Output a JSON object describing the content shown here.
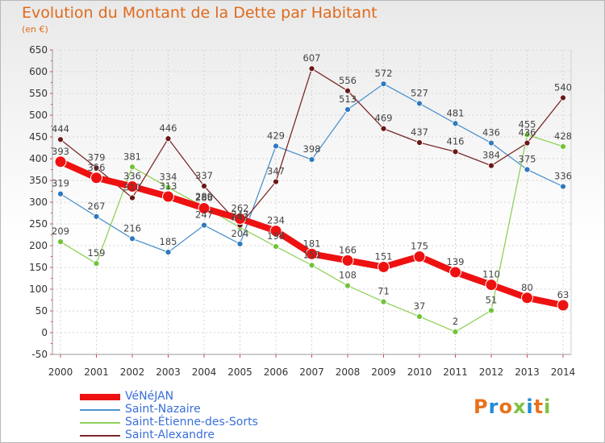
{
  "title": "Evolution du Montant de la Dette par Habitant",
  "subtitle": "(en €)",
  "logo": {
    "text": "Proxiti",
    "colors": [
      "#e8721c",
      "#1f8bd6",
      "#e8721c",
      "#7cc242",
      "#1f8bd6",
      "#e8721c",
      "#7cc242"
    ]
  },
  "chart_data": {
    "type": "line",
    "x": [
      2000,
      2001,
      2002,
      2003,
      2004,
      2005,
      2006,
      2007,
      2008,
      2009,
      2010,
      2011,
      2012,
      2013,
      2014
    ],
    "ylim": [
      -50,
      650
    ],
    "yticks": [
      -50,
      0,
      50,
      100,
      150,
      200,
      250,
      300,
      350,
      400,
      450,
      500,
      550,
      600,
      650
    ],
    "grid": true,
    "legend": "bottom-left",
    "series": [
      {
        "name": "Saint-Nazaire",
        "color": "#4f93cf",
        "dot": "#2f79bd",
        "width": 1.3,
        "radius": 3.5,
        "values": [
          319,
          267,
          216,
          185,
          247,
          204,
          429,
          398,
          513,
          572,
          527,
          481,
          436,
          375,
          336
        ],
        "labels": [
          319,
          267,
          216,
          185,
          247,
          204,
          429,
          398,
          513,
          572,
          527,
          481,
          436,
          375,
          336
        ]
      },
      {
        "name": "Saint-Étienne-des-Sorts",
        "color": "#8fd15a",
        "dot": "#72c23a",
        "width": 1.3,
        "radius": 3.5,
        "values": [
          209,
          159,
          381,
          334,
          289,
          242,
          198,
          155,
          108,
          71,
          37,
          2,
          51,
          455,
          428
        ],
        "labels": [
          209,
          159,
          381,
          334,
          289,
          242,
          198,
          155,
          108,
          71,
          37,
          2,
          51,
          455,
          428
        ]
      },
      {
        "name": "Saint-Alexandre",
        "color": "#7a2a2a",
        "dot": "#6a1818",
        "width": 1.3,
        "radius": 3.5,
        "values": [
          444,
          379,
          310,
          446,
          337,
          247,
          347,
          607,
          556,
          469,
          437,
          416,
          384,
          436,
          540
        ],
        "labels": [
          444,
          379,
          310,
          446,
          337,
          247,
          347,
          607,
          556,
          469,
          437,
          416,
          384,
          436,
          540
        ]
      },
      {
        "name": "VéNéJAN",
        "color": "#ee1111",
        "dot": "#ee1111",
        "width": 8,
        "radius": 7,
        "values": [
          393,
          356,
          336,
          313,
          286,
          262,
          234,
          181,
          166,
          151,
          175,
          139,
          110,
          80,
          63
        ],
        "labels": [
          393,
          356,
          336,
          313,
          286,
          262,
          234,
          181,
          166,
          151,
          175,
          139,
          110,
          80,
          63
        ]
      }
    ],
    "legend_entries": [
      {
        "name": "VéNéJAN",
        "color": "#ee1111",
        "width": 8
      },
      {
        "name": "Saint-Nazaire",
        "color": "#4f93cf",
        "width": 1.5
      },
      {
        "name": "Saint-Étienne-des-Sorts",
        "color": "#8fd15a",
        "width": 1.5
      },
      {
        "name": "Saint-Alexandre",
        "color": "#7a2a2a",
        "width": 1.5
      }
    ]
  }
}
